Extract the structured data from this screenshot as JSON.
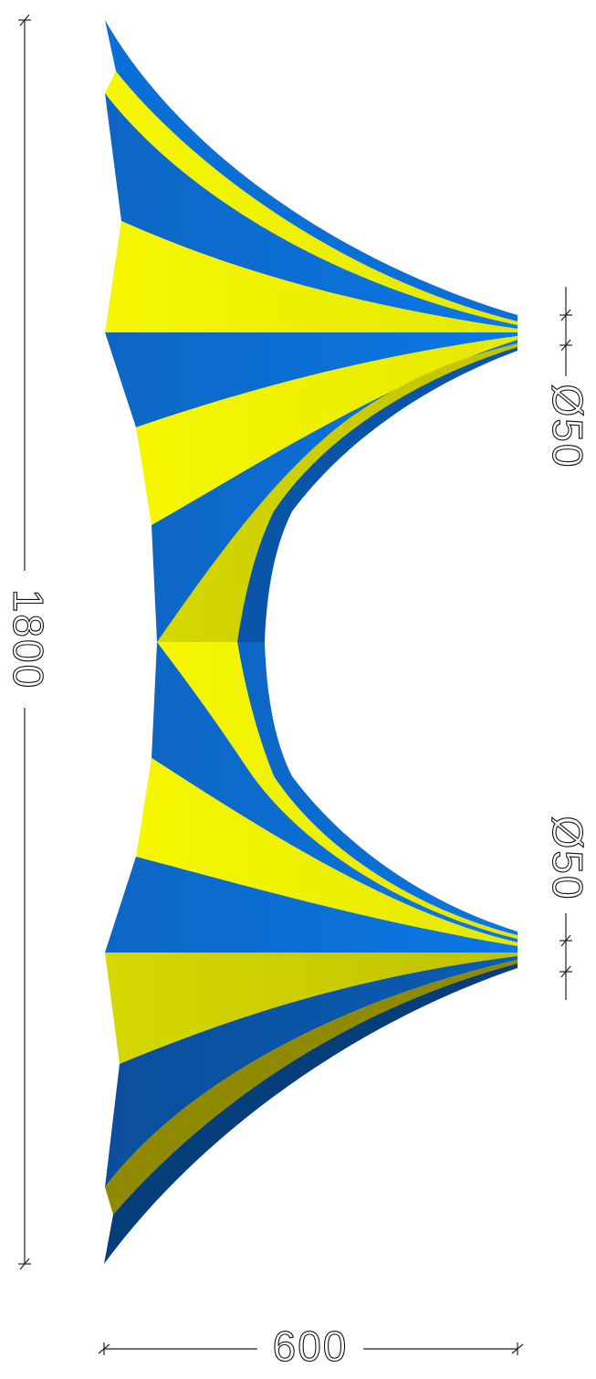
{
  "dimensions": {
    "overall_height": "1800",
    "overall_width": "600",
    "top_ring_diameter": "Ø50",
    "bottom_ring_diameter": "Ø50"
  },
  "colors": {
    "stripe_yellow": "#eef000",
    "stripe_yellow_shade": "#c9cc00",
    "stripe_yellow_dark": "#8f8a00",
    "stripe_blue": "#0a6fd6",
    "stripe_blue_shade": "#0b55a8",
    "stripe_blue_dark": "#053e7a",
    "dimension_lines": "#222222"
  }
}
